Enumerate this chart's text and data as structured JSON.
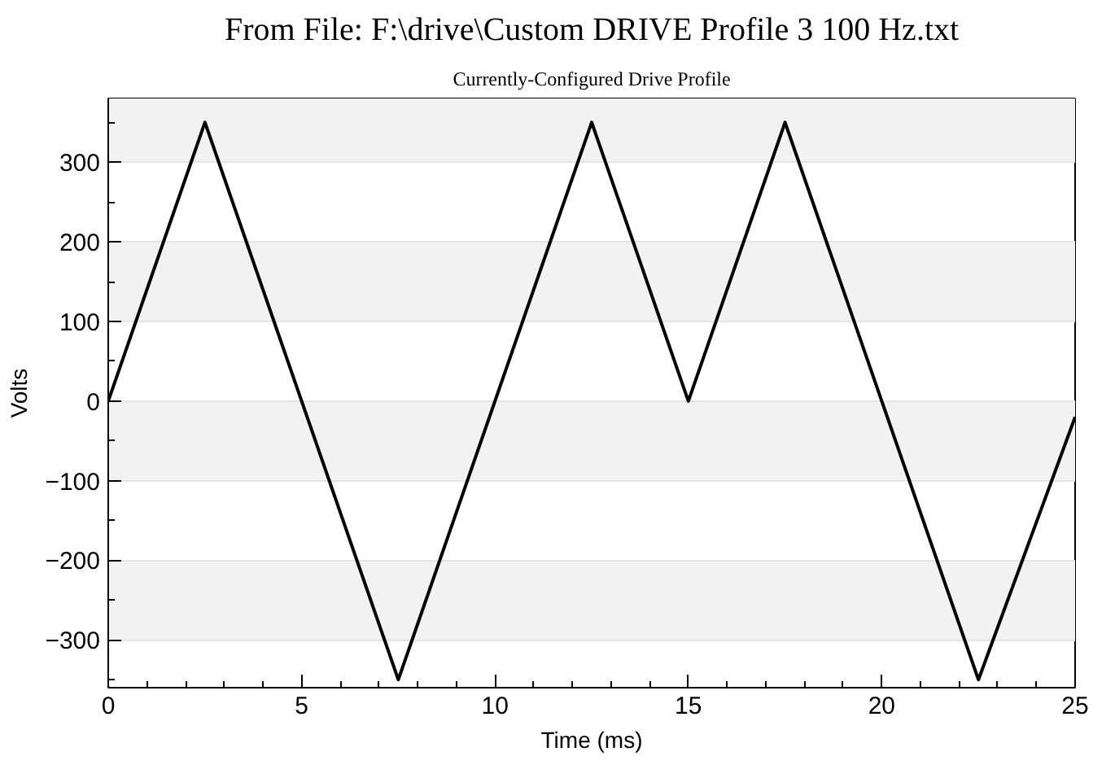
{
  "chart_data": {
    "type": "line",
    "title": "From File: F:\\drive\\Custom DRIVE Profile 3 100 Hz.txt",
    "subtitle": "Currently-Configured Drive Profile",
    "xlabel": "Time (ms)",
    "ylabel": "Volts",
    "x": [
      0,
      2.5,
      7.5,
      12.5,
      15,
      17.5,
      22.5,
      25
    ],
    "series": [
      {
        "color": "#000000",
        "values": [
          0,
          350,
          -350,
          350,
          0,
          350,
          -350,
          -20
        ]
      }
    ],
    "xlim": [
      0,
      25
    ],
    "ylim": [
      -360,
      380
    ],
    "xticks": [
      0,
      5,
      10,
      15,
      20,
      25
    ],
    "yticks": [
      -300,
      -200,
      -100,
      0,
      100,
      200,
      300
    ],
    "grid": "y",
    "marker": "none",
    "line_style": "solid"
  }
}
